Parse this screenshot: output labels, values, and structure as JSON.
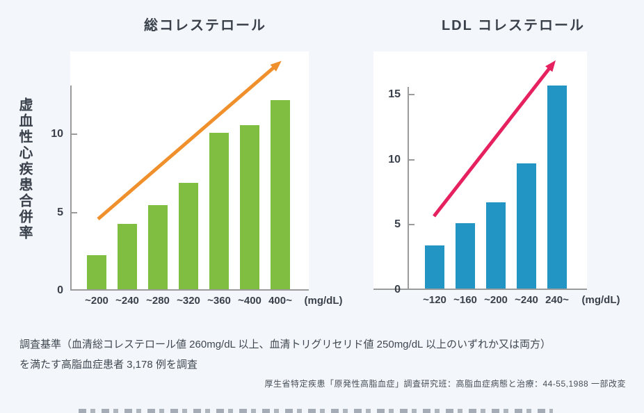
{
  "page": {
    "background": "#f3f6fb",
    "plot_background": "#ffffff",
    "axis_color": "#9b9b9b",
    "text_color": "#3a414b"
  },
  "chart_data": [
    {
      "type": "bar",
      "title": "総コレステロール",
      "ylabel": "虚血性心疾患合併率",
      "categories": [
        "~200",
        "~240",
        "~280",
        "~320",
        "~360",
        "~400",
        "400~"
      ],
      "values": [
        2.2,
        4.2,
        5.4,
        6.8,
        10,
        10.5,
        12.1
      ],
      "unit_label": "(mg/dL)",
      "yticks": [
        0,
        5,
        10
      ],
      "ylim": [
        0,
        15.3
      ],
      "grid": false,
      "legend": false,
      "bar_color": "#7fbe41",
      "arrow_color": "#f0902c",
      "trend_arrow": "rising"
    },
    {
      "type": "bar",
      "title": "LDL コレステロール",
      "ylabel": "虚血性心疾患合併率",
      "categories": [
        "~120",
        "~160",
        "~200",
        "~240",
        "240~"
      ],
      "values": [
        3.3,
        5,
        6.6,
        9.6,
        15.6
      ],
      "unit_label": "(mg/dL)",
      "yticks": [
        0,
        5,
        10,
        15
      ],
      "ylim": [
        0,
        18.3
      ],
      "grid": false,
      "legend": false,
      "bar_color": "#2295c5",
      "arrow_color": "#e6215f",
      "trend_arrow": "rising"
    }
  ],
  "footnote": {
    "line1": "調査基準（血清総コレステロール値 260mg/dL 以上、血清トリグリセリド値 250mg/dL 以上のいずれか又は両方）",
    "line2": "を満たす高脂血症患者 3,178 例を調査"
  },
  "source": "厚生省特定疾患「原発性高脂血症」調査研究班：高脂血症病態と治療：44-55,1988 一部改変"
}
